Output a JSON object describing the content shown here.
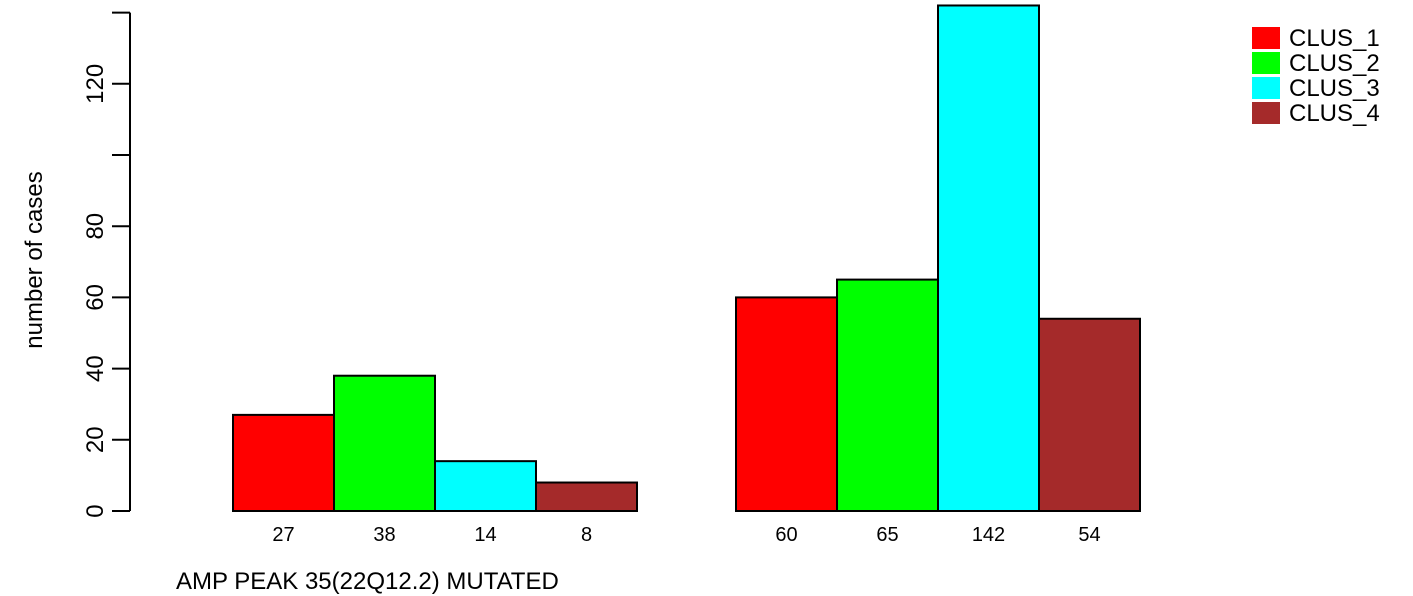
{
  "chart_data": {
    "type": "bar",
    "title": "",
    "xlabel": "AMP PEAK 35(22Q12.2) MUTATED",
    "ylabel": "number of cases",
    "yticks": [
      0,
      20,
      40,
      60,
      80,
      100,
      120,
      140
    ],
    "ytick_labels": [
      "0",
      "20",
      "40",
      "60",
      "80",
      "",
      "120",
      ""
    ],
    "ylim": [
      0,
      142
    ],
    "grid": false,
    "legend_position": "top-right",
    "series": [
      {
        "name": "CLUS_1",
        "color": "#ff0000",
        "values": [
          27,
          60
        ]
      },
      {
        "name": "CLUS_2",
        "color": "#00ff00",
        "values": [
          38,
          65
        ]
      },
      {
        "name": "CLUS_3",
        "color": "#00ffff",
        "values": [
          14,
          142
        ]
      },
      {
        "name": "CLUS_4",
        "color": "#a52a2a",
        "values": [
          8,
          54
        ]
      }
    ]
  }
}
